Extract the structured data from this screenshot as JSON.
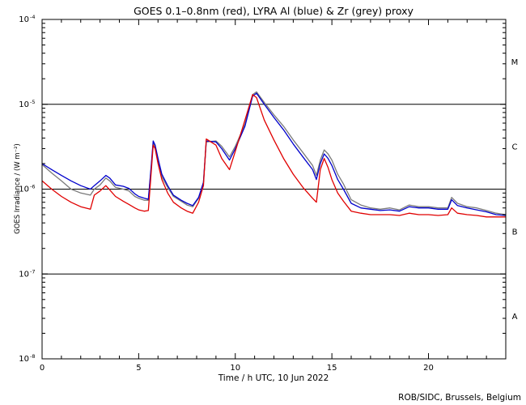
{
  "chart_data": {
    "type": "line",
    "title": "GOES 0.1–0.8nm (red), LYRA Al (blue) & Zr (grey) proxy",
    "xlabel": "Time / h UTC, 10 Jun 2022",
    "ylabel": "GOES Irradiance / (W m⁻²)",
    "xlim": [
      0,
      24
    ],
    "ylim": [
      1e-08,
      0.0001
    ],
    "yscale": "log",
    "x_ticks": [
      0,
      5,
      10,
      15,
      20
    ],
    "x_tick_labels": [
      "0",
      "5",
      "10",
      "15",
      "20"
    ],
    "y_ticks": [
      {
        "value": 1e-08,
        "base": "10",
        "exp": "-8"
      },
      {
        "value": 1e-07,
        "base": "10",
        "exp": "-7"
      },
      {
        "value": 1e-06,
        "base": "10",
        "exp": "-6"
      },
      {
        "value": 1e-05,
        "base": "10",
        "exp": "-5"
      },
      {
        "value": 0.0001,
        "base": "10",
        "exp": "-4"
      }
    ],
    "flare_class_lines": [
      1e-07,
      1e-06,
      1e-05
    ],
    "flare_classes": [
      {
        "label": "A",
        "value": 3.2e-08
      },
      {
        "label": "B",
        "value": 3.2e-07
      },
      {
        "label": "C",
        "value": 3.2e-06
      },
      {
        "label": "M",
        "value": 3.2e-05
      }
    ],
    "colors": {
      "goes": "#e00000",
      "lyra_al": "#0000cc",
      "lyra_zr": "#7a7a7a",
      "axes": "#000000"
    },
    "series": [
      {
        "name": "LYRA Zr proxy",
        "color": "#7a7a7a",
        "x": [
          0,
          0.5,
          1.0,
          1.5,
          2.0,
          2.5,
          2.7,
          3.0,
          3.3,
          3.5,
          3.8,
          4.2,
          4.5,
          4.8,
          5.0,
          5.3,
          5.5,
          5.65,
          5.75,
          5.85,
          6.0,
          6.2,
          6.5,
          6.8,
          7.2,
          7.5,
          7.8,
          8.1,
          8.35,
          8.5,
          9.0,
          9.3,
          9.7,
          10.0,
          10.5,
          10.9,
          11.1,
          11.5,
          12.0,
          12.5,
          13.0,
          13.5,
          14.0,
          14.2,
          14.4,
          14.6,
          14.8,
          15.0,
          15.3,
          15.6,
          16.0,
          16.5,
          17.0,
          17.5,
          18.0,
          18.5,
          19.0,
          19.5,
          20.0,
          20.5,
          21.0,
          21.2,
          21.5,
          22.0,
          22.5,
          23.0,
          23.5,
          24.0
        ],
        "y": [
          1.95e-06,
          1.55e-06,
          1.25e-06,
          1e-06,
          9e-07,
          8.5e-07,
          1e-06,
          1.12e-06,
          1.35e-06,
          1.25e-06,
          1.05e-06,
          1e-06,
          9.5e-07,
          8.2e-07,
          7.8e-07,
          7.4e-07,
          7.4e-07,
          1.8e-06,
          3.5e-06,
          3.2e-06,
          2.2e-06,
          1.4e-06,
          1.05e-06,
          8.2e-07,
          7.2e-07,
          6.5e-07,
          6.2e-07,
          7.8e-07,
          1.2e-06,
          3.6e-06,
          3.7e-06,
          3.2e-06,
          2.4e-06,
          3.2e-06,
          5.8e-06,
          1.3e-05,
          1.4e-05,
          1.05e-05,
          7.5e-06,
          5.5e-06,
          3.8e-06,
          2.7e-06,
          1.9e-06,
          1.45e-06,
          2.2e-06,
          2.9e-06,
          2.6e-06,
          2.2e-06,
          1.5e-06,
          1.15e-06,
          7.5e-07,
          6.5e-07,
          6e-07,
          5.8e-07,
          6e-07,
          5.7e-07,
          6.5e-07,
          6.2e-07,
          6.2e-07,
          6e-07,
          6e-07,
          8e-07,
          6.8e-07,
          6.2e-07,
          6e-07,
          5.6e-07,
          5.2e-07,
          5e-07
        ]
      },
      {
        "name": "LYRA Al proxy",
        "color": "#0000cc",
        "x": [
          0,
          0.5,
          1.0,
          1.5,
          2.0,
          2.5,
          2.7,
          3.0,
          3.3,
          3.5,
          3.8,
          4.2,
          4.5,
          4.8,
          5.0,
          5.3,
          5.5,
          5.65,
          5.75,
          5.85,
          6.0,
          6.2,
          6.5,
          6.8,
          7.2,
          7.5,
          7.8,
          8.1,
          8.35,
          8.5,
          9.0,
          9.3,
          9.7,
          10.0,
          10.5,
          10.9,
          11.1,
          11.5,
          12.0,
          12.5,
          13.0,
          13.5,
          14.0,
          14.2,
          14.4,
          14.6,
          14.8,
          15.0,
          15.3,
          15.6,
          16.0,
          16.5,
          17.0,
          17.5,
          18.0,
          18.5,
          19.0,
          19.5,
          20.0,
          20.5,
          21.0,
          21.2,
          21.5,
          22.0,
          22.5,
          23.0,
          23.5,
          24.0
        ],
        "y": [
          2e-06,
          1.7e-06,
          1.45e-06,
          1.25e-06,
          1.1e-06,
          1e-06,
          1.1e-06,
          1.25e-06,
          1.45e-06,
          1.35e-06,
          1.12e-06,
          1.08e-06,
          1.02e-06,
          8.8e-07,
          8.2e-07,
          7.8e-07,
          7.6e-07,
          1.9e-06,
          3.7e-06,
          3.3e-06,
          2.3e-06,
          1.5e-06,
          1.1e-06,
          8.5e-07,
          7.4e-07,
          6.8e-07,
          6.4e-07,
          8e-07,
          1.2e-06,
          3.7e-06,
          3.6e-06,
          3e-06,
          2.2e-06,
          3e-06,
          5.5e-06,
          1.25e-05,
          1.35e-05,
          1e-05,
          7e-06,
          5e-06,
          3.4e-06,
          2.4e-06,
          1.7e-06,
          1.3e-06,
          2e-06,
          2.6e-06,
          2.3e-06,
          1.9e-06,
          1.3e-06,
          1e-06,
          6.8e-07,
          6e-07,
          5.8e-07,
          5.6e-07,
          5.7e-07,
          5.5e-07,
          6.2e-07,
          6e-07,
          6e-07,
          5.8e-07,
          5.8e-07,
          7.5e-07,
          6.4e-07,
          6e-07,
          5.7e-07,
          5.4e-07,
          5e-07,
          4.9e-07
        ]
      },
      {
        "name": "GOES 0.1–0.8nm",
        "color": "#e00000",
        "x": [
          0,
          0.5,
          1.0,
          1.5,
          2.0,
          2.5,
          2.7,
          3.0,
          3.3,
          3.5,
          3.8,
          4.2,
          4.5,
          4.8,
          5.0,
          5.3,
          5.5,
          5.65,
          5.75,
          5.85,
          6.0,
          6.2,
          6.5,
          6.8,
          7.2,
          7.5,
          7.8,
          8.1,
          8.35,
          8.5,
          9.0,
          9.3,
          9.7,
          10.0,
          10.5,
          10.9,
          11.1,
          11.5,
          12.0,
          12.5,
          13.0,
          13.5,
          14.0,
          14.2,
          14.4,
          14.6,
          14.8,
          15.0,
          15.3,
          15.6,
          16.0,
          16.5,
          17.0,
          17.5,
          18.0,
          18.5,
          19.0,
          19.5,
          20.0,
          20.5,
          21.0,
          21.2,
          21.5,
          22.0,
          22.5,
          23.0,
          23.5,
          24.0
        ],
        "y": [
          1.25e-06,
          1e-06,
          8.2e-07,
          7e-07,
          6.2e-07,
          5.8e-07,
          8.5e-07,
          9.5e-07,
          1.1e-06,
          9.8e-07,
          8.2e-07,
          7.2e-07,
          6.6e-07,
          6e-07,
          5.7e-07,
          5.5e-07,
          5.6e-07,
          1.6e-06,
          3.3e-06,
          3e-06,
          2e-06,
          1.3e-06,
          9e-07,
          7e-07,
          6e-07,
          5.5e-07,
          5.2e-07,
          7e-07,
          1.1e-06,
          3.9e-06,
          3.3e-06,
          2.3e-06,
          1.7e-06,
          2.8e-06,
          6.5e-06,
          1.3e-05,
          1.2e-05,
          6.5e-06,
          3.8e-06,
          2.3e-06,
          1.5e-06,
          1.05e-06,
          7.8e-07,
          7e-07,
          1.7e-06,
          2.3e-06,
          1.8e-06,
          1.3e-06,
          9e-07,
          7.2e-07,
          5.5e-07,
          5.2e-07,
          5e-07,
          5e-07,
          5e-07,
          4.9e-07,
          5.2e-07,
          5e-07,
          5e-07,
          4.9e-07,
          5e-07,
          6e-07,
          5.2e-07,
          5e-07,
          4.9e-07,
          4.7e-07,
          4.7e-07,
          4.7e-07
        ]
      }
    ],
    "annotation": "ROB/SIDC, Brussels, Belgium"
  }
}
